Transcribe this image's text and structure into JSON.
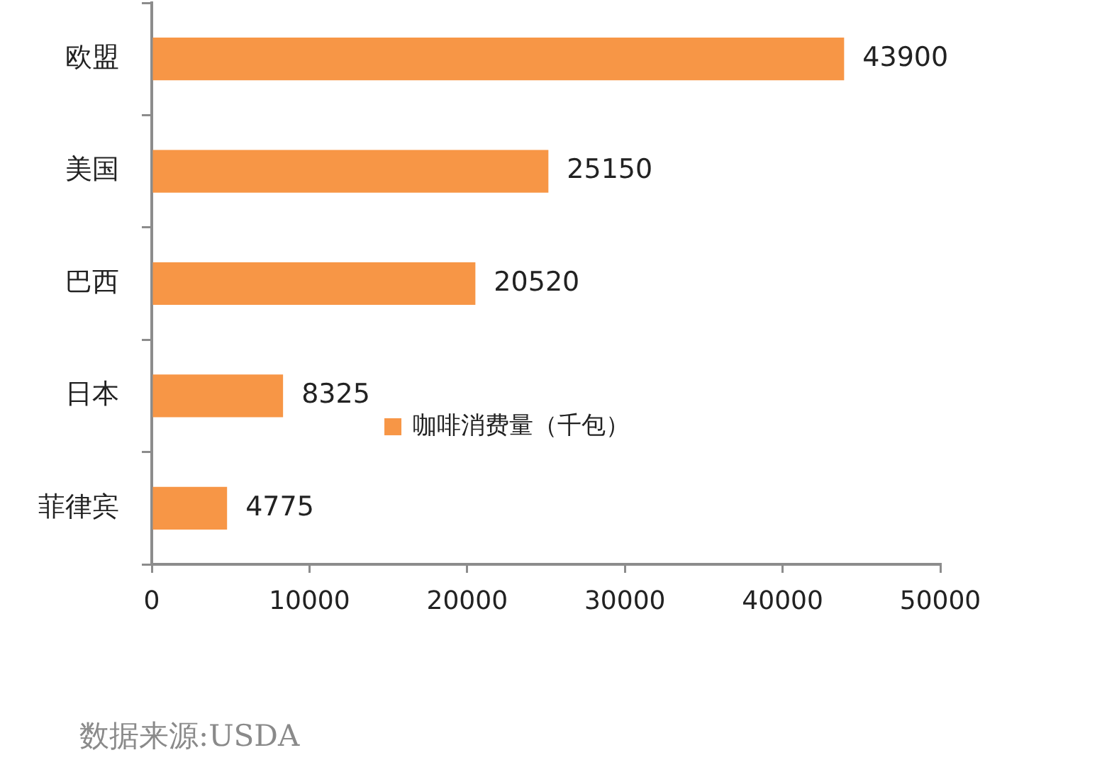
{
  "chart_data": {
    "type": "bar",
    "orientation": "horizontal",
    "categories": [
      "欧盟",
      "美国",
      "巴西",
      "日本",
      "菲律宾"
    ],
    "series": [
      {
        "name": "咖啡消费量（千包）",
        "color": "#f79646",
        "values": [
          43900,
          25150,
          20520,
          8325,
          4775
        ]
      }
    ],
    "xlim": [
      0,
      50000
    ],
    "xticks": [
      0,
      10000,
      20000,
      30000,
      40000,
      50000
    ],
    "data_labels": true,
    "legend": "bottom",
    "annotations": [
      "数据来源:USDA"
    ]
  }
}
